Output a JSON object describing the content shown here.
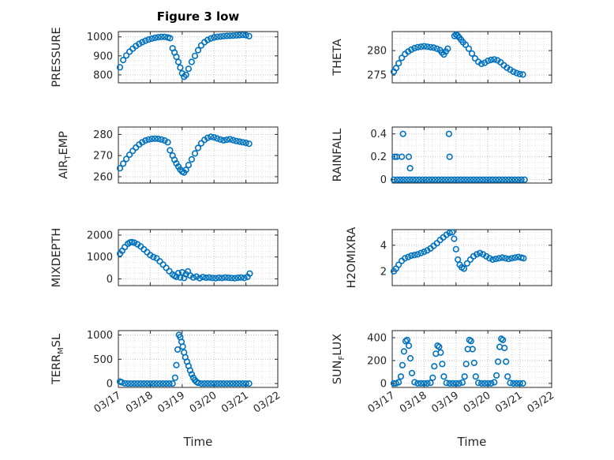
{
  "title": "Figure 3 low",
  "xlabel": "Time",
  "accent_color": "#0072BD",
  "axis_color": "#262626",
  "x_tick_labels": [
    "03/17",
    "03/18",
    "03/19",
    "03/20",
    "03/21",
    "03/22"
  ],
  "chart_data": [
    {
      "type": "scatter",
      "name": "PRESSURE",
      "marker": "open-circle",
      "ylabel": [
        {
          "t": "PRESSURE"
        }
      ],
      "ylim": [
        758,
        1028
      ],
      "yticks": [
        800,
        900,
        1000
      ],
      "xlim": [
        0,
        5
      ],
      "show_x_tick_labels": false,
      "x": [
        0.05,
        0.15,
        0.25,
        0.35,
        0.45,
        0.55,
        0.65,
        0.75,
        0.85,
        0.95,
        1.05,
        1.15,
        1.25,
        1.35,
        1.45,
        1.55,
        1.62,
        1.7,
        1.76,
        1.82,
        1.88,
        1.94,
        2.0,
        2.06,
        2.12,
        2.2,
        2.3,
        2.4,
        2.5,
        2.6,
        2.7,
        2.8,
        2.9,
        3.0,
        3.1,
        3.2,
        3.3,
        3.4,
        3.5,
        3.6,
        3.7,
        3.8,
        3.9,
        4.0,
        4.1
      ],
      "y": [
        840,
        878,
        902,
        922,
        938,
        952,
        963,
        972,
        980,
        986,
        991,
        995,
        998,
        1000,
        1000,
        997,
        993,
        940,
        918,
        895,
        868,
        838,
        808,
        790,
        800,
        832,
        868,
        900,
        930,
        955,
        972,
        984,
        992,
        997,
        1000,
        1002,
        1004,
        1005,
        1006,
        1007,
        1008,
        1009,
        1010,
        1009,
        1004
      ]
    },
    {
      "type": "scatter",
      "name": "THETA",
      "marker": "open-circle",
      "ylabel": [
        {
          "t": "THETA"
        }
      ],
      "ylim": [
        273.4,
        283.9
      ],
      "yticks": [
        275,
        280
      ],
      "xlim": [
        0,
        5
      ],
      "show_x_tick_labels": false,
      "x": [
        0.05,
        0.12,
        0.2,
        0.3,
        0.4,
        0.5,
        0.6,
        0.7,
        0.8,
        0.9,
        1.0,
        1.1,
        1.2,
        1.3,
        1.4,
        1.5,
        1.56,
        1.62,
        1.68,
        1.74,
        1.95,
        2.0,
        2.05,
        2.1,
        2.16,
        2.22,
        2.3,
        2.4,
        2.5,
        2.6,
        2.7,
        2.8,
        2.9,
        3.0,
        3.1,
        3.2,
        3.3,
        3.4,
        3.5,
        3.6,
        3.7,
        3.8,
        3.9,
        4.0,
        4.1
      ],
      "y": [
        275.7,
        276.4,
        277.4,
        278.5,
        279.3,
        279.8,
        280.2,
        280.5,
        280.7,
        280.8,
        280.9,
        280.8,
        280.7,
        280.6,
        280.4,
        280.1,
        279.6,
        279.2,
        279.8,
        280.4,
        283.0,
        283.3,
        283.1,
        282.7,
        282.2,
        281.7,
        281.2,
        280.4,
        279.4,
        278.4,
        277.7,
        277.3,
        277.5,
        277.9,
        278.1,
        278.2,
        278.0,
        277.6,
        277.0,
        276.5,
        276.1,
        275.7,
        275.4,
        275.2,
        275.1
      ]
    },
    {
      "type": "scatter",
      "name": "AIR_TEMP",
      "marker": "open-circle",
      "ylabel": [
        {
          "t": "AIR"
        },
        {
          "t": "T",
          "sub": true
        },
        {
          "t": "EMP"
        }
      ],
      "ylim": [
        257,
        283.5
      ],
      "yticks": [
        260,
        270,
        280
      ],
      "xlim": [
        0,
        5
      ],
      "show_x_tick_labels": false,
      "x": [
        0.05,
        0.15,
        0.25,
        0.35,
        0.45,
        0.55,
        0.65,
        0.75,
        0.85,
        0.95,
        1.05,
        1.15,
        1.25,
        1.35,
        1.45,
        1.55,
        1.62,
        1.7,
        1.76,
        1.82,
        1.88,
        1.94,
        2.0,
        2.06,
        2.12,
        2.2,
        2.3,
        2.4,
        2.5,
        2.6,
        2.7,
        2.8,
        2.9,
        3.0,
        3.1,
        3.2,
        3.3,
        3.4,
        3.5,
        3.6,
        3.7,
        3.8,
        3.9,
        4.0,
        4.1
      ],
      "y": [
        264.0,
        266.2,
        268.4,
        270.4,
        272.2,
        273.8,
        275.2,
        276.3,
        277.1,
        277.6,
        277.9,
        278.0,
        277.9,
        277.6,
        277.1,
        276.3,
        272.5,
        270.0,
        268.0,
        266.3,
        264.8,
        263.4,
        262.4,
        262.0,
        263.2,
        265.5,
        268.2,
        271.0,
        273.6,
        275.8,
        277.4,
        278.4,
        278.9,
        278.6,
        278.1,
        277.6,
        277.2,
        277.5,
        277.7,
        277.3,
        276.9,
        276.6,
        276.3,
        276.0,
        275.6
      ]
    },
    {
      "type": "scatter",
      "name": "RAINFALL",
      "marker": "open-circle",
      "ylabel": [
        {
          "t": "RAINFALL"
        }
      ],
      "ylim": [
        -0.03,
        0.46
      ],
      "yticks": [
        0,
        0.2,
        0.4
      ],
      "xlim": [
        0,
        5
      ],
      "show_x_tick_labels": false,
      "x": [
        0.05,
        0.15,
        0.25,
        0.35,
        0.45,
        0.55,
        0.65,
        0.75,
        0.85,
        0.95,
        1.05,
        1.15,
        1.25,
        1.35,
        1.45,
        1.55,
        1.65,
        1.75,
        1.85,
        1.95,
        2.05,
        2.15,
        2.25,
        2.35,
        2.45,
        2.55,
        2.65,
        2.75,
        2.85,
        2.95,
        3.05,
        3.15,
        3.25,
        3.35,
        3.45,
        3.55,
        3.65,
        3.75,
        3.85,
        3.95,
        4.05,
        4.15,
        0.08,
        0.14,
        0.3,
        0.34,
        0.52,
        0.56,
        1.78,
        1.8
      ],
      "y": [
        0,
        0,
        0,
        0,
        0,
        0,
        0,
        0,
        0,
        0,
        0,
        0,
        0,
        0,
        0,
        0,
        0,
        0,
        0,
        0,
        0,
        0,
        0,
        0,
        0,
        0,
        0,
        0,
        0,
        0,
        0,
        0,
        0,
        0,
        0,
        0,
        0,
        0,
        0,
        0,
        0,
        0,
        0.2,
        0.2,
        0.2,
        0.4,
        0.2,
        0.1,
        0.4,
        0.2
      ]
    },
    {
      "type": "scatter",
      "name": "MIXDEPTH",
      "marker": "open-circle",
      "ylabel": [
        {
          "t": "MIXDEPTH"
        }
      ],
      "ylim": [
        -310,
        2250
      ],
      "yticks": [
        0,
        1000,
        2000
      ],
      "xlim": [
        0,
        5
      ],
      "show_x_tick_labels": false,
      "x": [
        0.05,
        0.12,
        0.2,
        0.3,
        0.36,
        0.42,
        0.5,
        0.6,
        0.7,
        0.8,
        0.9,
        1.0,
        1.1,
        1.2,
        1.3,
        1.4,
        1.5,
        1.6,
        1.7,
        1.76,
        1.82,
        1.88,
        1.94,
        2.0,
        2.06,
        2.12,
        2.18,
        2.25,
        2.35,
        2.45,
        2.55,
        2.65,
        2.75,
        2.85,
        2.95,
        3.05,
        3.15,
        3.25,
        3.35,
        3.45,
        3.55,
        3.65,
        3.75,
        3.85,
        3.95,
        4.05,
        4.12
      ],
      "y": [
        1150,
        1280,
        1450,
        1600,
        1660,
        1680,
        1650,
        1580,
        1480,
        1350,
        1220,
        1080,
        1000,
        940,
        800,
        650,
        500,
        350,
        200,
        140,
        90,
        260,
        60,
        300,
        40,
        210,
        340,
        150,
        60,
        100,
        30,
        80,
        50,
        60,
        40,
        30,
        50,
        40,
        60,
        50,
        40,
        30,
        50,
        60,
        40,
        90,
        240
      ]
    },
    {
      "type": "scatter",
      "name": "H2OMIXRA",
      "marker": "open-circle",
      "ylabel": [
        {
          "t": "H2OMIXRA"
        }
      ],
      "ylim": [
        0.9,
        5.2
      ],
      "yticks": [
        2,
        4
      ],
      "xlim": [
        0,
        5
      ],
      "show_x_tick_labels": false,
      "x": [
        0.05,
        0.12,
        0.2,
        0.3,
        0.4,
        0.5,
        0.6,
        0.7,
        0.8,
        0.9,
        1.0,
        1.1,
        1.2,
        1.3,
        1.4,
        1.5,
        1.6,
        1.7,
        1.8,
        1.88,
        1.94,
        2.0,
        2.06,
        2.12,
        2.18,
        2.25,
        2.35,
        2.45,
        2.55,
        2.65,
        2.75,
        2.85,
        2.95,
        3.05,
        3.15,
        3.25,
        3.35,
        3.45,
        3.55,
        3.65,
        3.75,
        3.85,
        3.95,
        4.05,
        4.12
      ],
      "y": [
        2.0,
        2.2,
        2.5,
        2.8,
        3.0,
        3.1,
        3.2,
        3.25,
        3.3,
        3.4,
        3.5,
        3.6,
        3.75,
        3.95,
        4.15,
        4.4,
        4.6,
        4.8,
        4.95,
        5.0,
        4.5,
        3.7,
        2.9,
        2.5,
        2.3,
        2.2,
        2.6,
        2.9,
        3.15,
        3.3,
        3.4,
        3.3,
        3.15,
        3.0,
        2.9,
        2.95,
        3.0,
        3.05,
        3.0,
        2.95,
        3.0,
        3.05,
        3.1,
        3.05,
        3.0
      ]
    },
    {
      "type": "scatter",
      "name": "TERR_MSL",
      "marker": "open-circle",
      "ylabel": [
        {
          "t": "TERR"
        },
        {
          "t": "M",
          "sub": true
        },
        {
          "t": "SL"
        }
      ],
      "ylim": [
        -80,
        1090
      ],
      "yticks": [
        0,
        500,
        1000
      ],
      "xlim": [
        0,
        5
      ],
      "show_x_tick_labels": true,
      "x": [
        0.05,
        0.1,
        0.2,
        0.3,
        0.4,
        0.5,
        0.6,
        0.7,
        0.8,
        0.9,
        1.0,
        1.1,
        1.2,
        1.3,
        1.4,
        1.5,
        1.6,
        1.7,
        1.78,
        1.82,
        1.86,
        1.9,
        1.94,
        1.98,
        2.02,
        2.06,
        2.1,
        2.15,
        2.2,
        2.25,
        2.3,
        2.35,
        2.4,
        2.45,
        2.5,
        2.6,
        2.7,
        2.8,
        2.9,
        3.0,
        3.1,
        3.2,
        3.3,
        3.4,
        3.5,
        3.6,
        3.7,
        3.8,
        3.9,
        4.0,
        4.1
      ],
      "y": [
        40,
        25,
        5,
        0,
        0,
        0,
        0,
        0,
        0,
        0,
        0,
        0,
        0,
        0,
        0,
        0,
        0,
        0,
        120,
        380,
        700,
        1000,
        955,
        860,
        760,
        640,
        540,
        450,
        360,
        270,
        190,
        120,
        70,
        35,
        15,
        0,
        0,
        0,
        0,
        0,
        0,
        0,
        0,
        0,
        0,
        0,
        0,
        0,
        0,
        0,
        0
      ]
    },
    {
      "type": "scatter",
      "name": "SUN_FLUX",
      "marker": "open-circle",
      "ylabel": [
        {
          "t": "SUN"
        },
        {
          "t": "F",
          "sub": true
        },
        {
          "t": "LUX"
        }
      ],
      "ylim": [
        -35,
        462
      ],
      "yticks": [
        0,
        200,
        400
      ],
      "xlim": [
        0,
        5
      ],
      "show_x_tick_labels": true,
      "x": [
        0.05,
        0.12,
        0.2,
        0.27,
        0.32,
        0.37,
        0.42,
        0.47,
        0.52,
        0.57,
        0.62,
        0.7,
        0.8,
        0.9,
        1.0,
        1.1,
        1.2,
        1.27,
        1.32,
        1.37,
        1.42,
        1.47,
        1.52,
        1.57,
        1.62,
        1.7,
        1.8,
        1.9,
        2.0,
        2.1,
        2.2,
        2.27,
        2.32,
        2.37,
        2.42,
        2.47,
        2.52,
        2.57,
        2.62,
        2.7,
        2.8,
        2.9,
        3.0,
        3.1,
        3.2,
        3.27,
        3.32,
        3.37,
        3.42,
        3.47,
        3.52,
        3.57,
        3.62,
        3.7,
        3.8,
        3.9,
        4.0,
        4.1
      ],
      "y": [
        0,
        0,
        10,
        60,
        160,
        280,
        370,
        380,
        330,
        220,
        90,
        10,
        0,
        0,
        0,
        0,
        5,
        50,
        150,
        260,
        330,
        320,
        270,
        170,
        60,
        5,
        0,
        0,
        0,
        0,
        8,
        60,
        170,
        300,
        380,
        370,
        300,
        180,
        60,
        5,
        0,
        0,
        0,
        0,
        10,
        70,
        190,
        320,
        390,
        380,
        310,
        190,
        60,
        5,
        0,
        0,
        0,
        0
      ]
    }
  ]
}
